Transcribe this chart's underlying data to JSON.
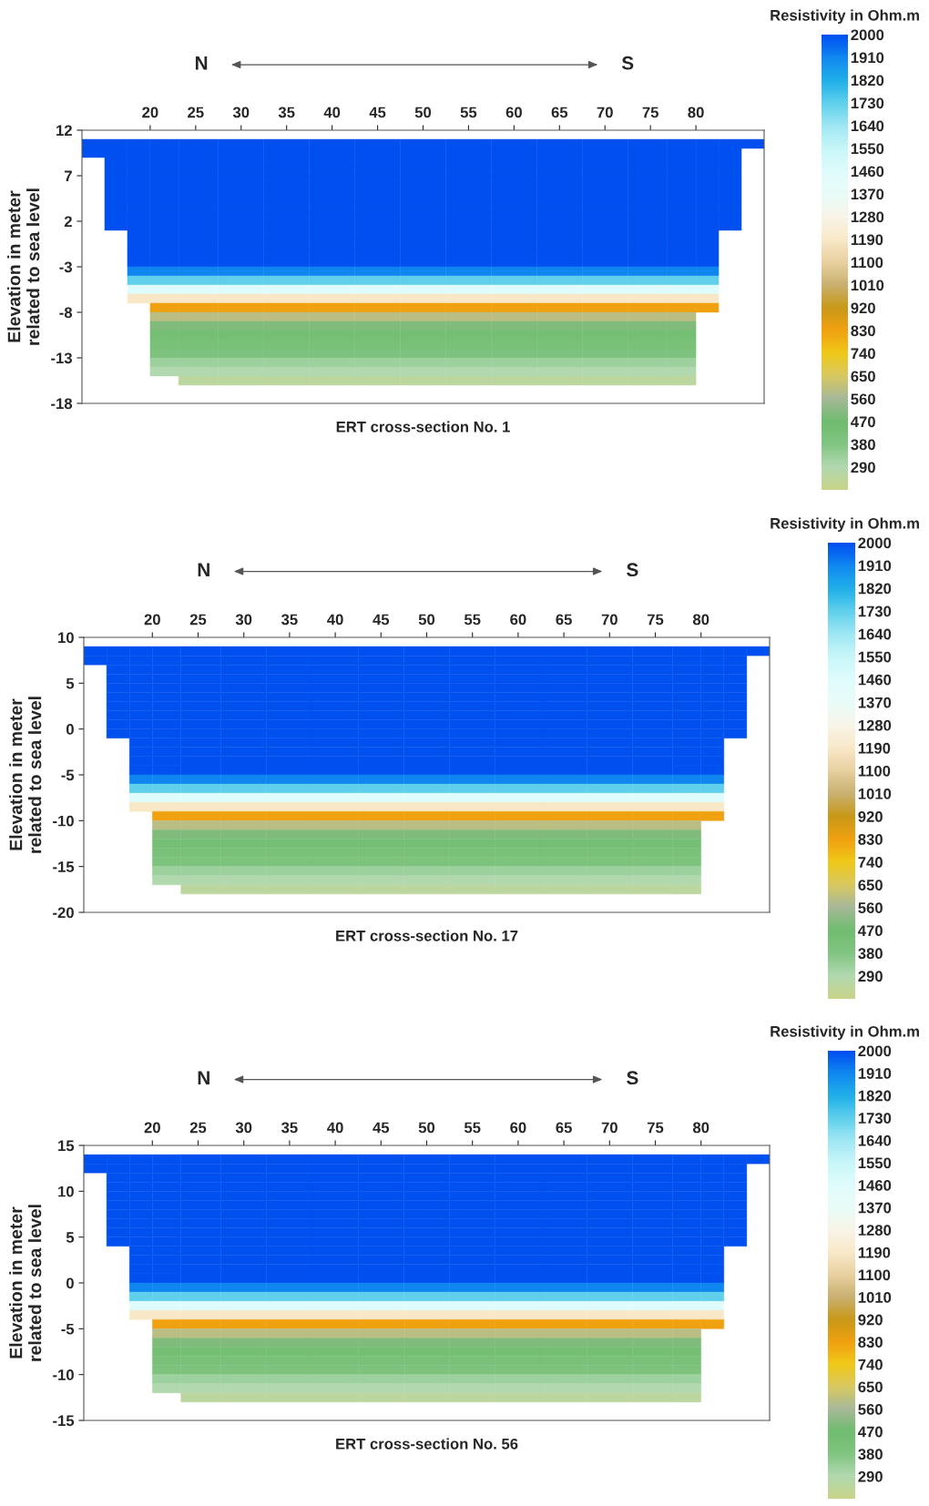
{
  "chart_data": [
    {
      "type": "heatmap",
      "xlabel": "ERT cross-section No. 1",
      "ylabel": "Elevation in meter\nrelated to sea level",
      "clabel": "Resistivity in Ohm.m",
      "annotations": [
        "N",
        "S"
      ],
      "x": [
        13.75,
        16.25,
        18.75,
        21.25,
        25,
        30,
        35,
        40,
        45,
        50,
        55,
        60,
        65,
        70,
        75,
        78.75,
        81.25,
        83.75,
        86.25
      ],
      "y": [
        10.5,
        9.5,
        8.5,
        7.5,
        6.5,
        5.5,
        4.5,
        3.5,
        2.5,
        1.5,
        0.5,
        -0.5,
        -1.5,
        -2.5,
        -3.5,
        -4.5,
        -5.5,
        -6.5,
        -7.5,
        -8.5,
        -9.5,
        -10.5,
        -11.5,
        -12.5,
        -13.5,
        -14.5,
        -15.5
      ],
      "cells": [
        [
          2000,
          2000,
          2000,
          2000,
          2000,
          2000,
          2000,
          2000,
          2000,
          2000,
          2000,
          2000,
          2000,
          2000,
          2000,
          2000,
          2000,
          2000,
          2000
        ],
        [
          2000,
          2000,
          2000,
          2000,
          2000,
          2000,
          2000,
          2000,
          2000,
          2000,
          2000,
          2000,
          2000,
          2000,
          2000,
          2000,
          2000,
          2000,
          null
        ],
        [
          null,
          2000,
          2000,
          2000,
          2000,
          2000,
          2000,
          2000,
          2000,
          2000,
          2000,
          2000,
          2000,
          2000,
          2000,
          2000,
          2000,
          2000,
          null
        ],
        [
          null,
          2000,
          2000,
          2000,
          2000,
          2000,
          2000,
          2000,
          2000,
          2000,
          2000,
          2000,
          2000,
          2000,
          2000,
          2000,
          2000,
          2000,
          null
        ],
        [
          null,
          2000,
          2000,
          2000,
          2000,
          2000,
          2000,
          2000,
          2000,
          2000,
          2000,
          2000,
          2000,
          2000,
          2000,
          2000,
          2000,
          2000,
          null
        ],
        [
          null,
          2000,
          2000,
          2000,
          2000,
          2000,
          2000,
          2000,
          2000,
          2000,
          2000,
          2000,
          2000,
          2000,
          2000,
          2000,
          2000,
          2000,
          null
        ],
        [
          null,
          2000,
          2000,
          2000,
          2000,
          2000,
          2000,
          2000,
          2000,
          2000,
          2000,
          2000,
          2000,
          2000,
          2000,
          2000,
          2000,
          2000,
          null
        ],
        [
          null,
          2000,
          2000,
          2000,
          2000,
          2000,
          2000,
          2000,
          2000,
          2000,
          2000,
          2000,
          2000,
          2000,
          2000,
          2000,
          2000,
          2000,
          null
        ],
        [
          null,
          2000,
          2000,
          2000,
          2000,
          2000,
          2000,
          2000,
          2000,
          2000,
          2000,
          2000,
          2000,
          2000,
          2000,
          2000,
          2000,
          2000,
          null
        ],
        [
          null,
          2000,
          2000,
          2000,
          2000,
          2000,
          2000,
          2000,
          2000,
          2000,
          2000,
          2000,
          2000,
          2000,
          2000,
          2000,
          2000,
          2000,
          null
        ],
        [
          null,
          null,
          2000,
          2000,
          2000,
          2000,
          2000,
          2000,
          2000,
          2000,
          2000,
          2000,
          2000,
          2000,
          2000,
          2000,
          2000,
          null,
          null
        ],
        [
          null,
          null,
          2000,
          2000,
          2000,
          2000,
          2000,
          2000,
          2000,
          2000,
          2000,
          2000,
          2000,
          2000,
          2000,
          2000,
          2000,
          null,
          null
        ],
        [
          null,
          null,
          2000,
          2000,
          2000,
          2000,
          2000,
          2000,
          2000,
          2000,
          2000,
          2000,
          2000,
          2000,
          2000,
          2000,
          2000,
          null,
          null
        ],
        [
          null,
          null,
          2000,
          2000,
          2000,
          2000,
          2000,
          2000,
          2000,
          2000,
          2000,
          2000,
          2000,
          2000,
          2000,
          2000,
          2000,
          null,
          null
        ],
        [
          null,
          null,
          1910,
          1910,
          1910,
          1910,
          1910,
          1910,
          1910,
          1910,
          1910,
          1910,
          1910,
          1910,
          1910,
          1910,
          1910,
          null,
          null
        ],
        [
          null,
          null,
          1730,
          1730,
          1730,
          1730,
          1730,
          1730,
          1730,
          1730,
          1730,
          1730,
          1730,
          1730,
          1730,
          1730,
          1730,
          null,
          null
        ],
        [
          null,
          null,
          1460,
          1460,
          1460,
          1460,
          1460,
          1460,
          1460,
          1460,
          1460,
          1460,
          1460,
          1460,
          1460,
          1460,
          1460,
          null,
          null
        ],
        [
          null,
          null,
          1190,
          1190,
          1190,
          1190,
          1190,
          1190,
          1190,
          1190,
          1190,
          1190,
          1190,
          1190,
          1190,
          1190,
          1190,
          null,
          null
        ],
        [
          null,
          null,
          null,
          830,
          830,
          830,
          830,
          830,
          830,
          830,
          830,
          830,
          830,
          830,
          830,
          830,
          830,
          null,
          null
        ],
        [
          null,
          null,
          null,
          600,
          600,
          600,
          600,
          600,
          600,
          600,
          600,
          600,
          600,
          600,
          600,
          600,
          null,
          null,
          null
        ],
        [
          null,
          null,
          null,
          500,
          500,
          500,
          500,
          500,
          500,
          500,
          500,
          500,
          500,
          500,
          500,
          500,
          null,
          null,
          null
        ],
        [
          null,
          null,
          null,
          440,
          440,
          440,
          440,
          440,
          440,
          440,
          440,
          440,
          440,
          440,
          440,
          440,
          null,
          null,
          null
        ],
        [
          null,
          null,
          null,
          420,
          420,
          420,
          420,
          420,
          420,
          420,
          420,
          420,
          420,
          420,
          420,
          420,
          null,
          null,
          null
        ],
        [
          null,
          null,
          null,
          400,
          400,
          400,
          400,
          400,
          400,
          400,
          400,
          400,
          400,
          400,
          400,
          400,
          null,
          null,
          null
        ],
        [
          null,
          null,
          null,
          330,
          330,
          330,
          330,
          330,
          330,
          330,
          330,
          330,
          330,
          330,
          330,
          330,
          null,
          null,
          null
        ],
        [
          null,
          null,
          null,
          290,
          290,
          290,
          290,
          290,
          290,
          290,
          290,
          290,
          290,
          290,
          290,
          290,
          null,
          null,
          null
        ],
        [
          null,
          null,
          null,
          null,
          250,
          250,
          250,
          250,
          250,
          250,
          250,
          250,
          250,
          250,
          250,
          250,
          null,
          null,
          null
        ]
      ],
      "colors": [
        "#c8d48a",
        "#b0d8b0",
        "#80c480",
        "#70bc70",
        "#a8b898",
        "#d8c860",
        "#f0c818",
        "#f0a010",
        "#c89818",
        "#c8b070",
        "#e8d0a0",
        "#f8e8c8",
        "#f8f4e8",
        "#e8fcf8",
        "#e0fcfc",
        "#c8f6f8",
        "#a0e8f4",
        "#60d0ec",
        "#20b0e8",
        "#1088f0",
        "#0050f0"
      ],
      "clim": [
        200,
        2000
      ],
      "cticks": [
        290,
        380,
        470,
        560,
        650,
        740,
        830,
        920,
        1010,
        1100,
        1190,
        1280,
        1370,
        1460,
        1550,
        1640,
        1730,
        1820,
        1910,
        2000
      ],
      "xlim": [
        12.5,
        87.5
      ],
      "xticks": [
        20,
        25,
        30,
        35,
        40,
        45,
        50,
        55,
        60,
        65,
        70,
        75,
        80
      ],
      "ylim": [
        -18,
        12
      ],
      "yticks": [
        12,
        7,
        2,
        -3,
        -8,
        -13,
        -18
      ],
      "grid": false
    },
    {
      "type": "heatmap",
      "xlabel": "ERT cross-section No. 17",
      "ylabel": "Elevation in meter\nrelated to sea level",
      "clabel": "Resistivity in Ohm.m",
      "annotations": [
        "N",
        "S"
      ],
      "x": [
        13.75,
        16.25,
        18.75,
        21.25,
        25,
        30,
        35,
        40,
        45,
        50,
        55,
        60,
        65,
        70,
        75,
        78.75,
        81.25,
        83.75,
        86.25
      ],
      "y": [
        8.5,
        7.5,
        6.5,
        5.5,
        4.5,
        3.5,
        2.5,
        1.5,
        0.5,
        -0.5,
        -1.5,
        -2.5,
        -3.5,
        -4.5,
        -5.5,
        -6.5,
        -7.5,
        -8.5,
        -9.5,
        -10.5,
        -11.5,
        -12.5,
        -13.5,
        -14.5,
        -15.5,
        -16.5,
        -17.5
      ],
      "cells": [
        [
          2000,
          2000,
          2000,
          2000,
          2000,
          2000,
          2000,
          2000,
          2000,
          2000,
          2000,
          2000,
          2000,
          2000,
          2000,
          2000,
          2000,
          2000,
          2000
        ],
        [
          2000,
          2000,
          2000,
          2000,
          2000,
          2000,
          2000,
          2000,
          2000,
          2000,
          2000,
          2000,
          2000,
          2000,
          2000,
          2000,
          2000,
          2000,
          null
        ],
        [
          null,
          2000,
          2000,
          2000,
          2000,
          2000,
          2000,
          2000,
          2000,
          2000,
          2000,
          2000,
          2000,
          2000,
          2000,
          2000,
          2000,
          2000,
          null
        ],
        [
          null,
          2000,
          2000,
          2000,
          2000,
          2000,
          2000,
          2000,
          2000,
          2000,
          2000,
          2000,
          2000,
          2000,
          2000,
          2000,
          2000,
          2000,
          null
        ],
        [
          null,
          2000,
          2000,
          2000,
          2000,
          2000,
          2000,
          2000,
          2000,
          2000,
          2000,
          2000,
          2000,
          2000,
          2000,
          2000,
          2000,
          2000,
          null
        ],
        [
          null,
          2000,
          2000,
          2000,
          2000,
          2000,
          2000,
          2000,
          2000,
          2000,
          2000,
          2000,
          2000,
          2000,
          2000,
          2000,
          2000,
          2000,
          null
        ],
        [
          null,
          2000,
          2000,
          2000,
          2000,
          2000,
          2000,
          2000,
          2000,
          2000,
          2000,
          2000,
          2000,
          2000,
          2000,
          2000,
          2000,
          2000,
          null
        ],
        [
          null,
          2000,
          2000,
          2000,
          2000,
          2000,
          2000,
          2000,
          2000,
          2000,
          2000,
          2000,
          2000,
          2000,
          2000,
          2000,
          2000,
          2000,
          null
        ],
        [
          null,
          2000,
          2000,
          2000,
          2000,
          2000,
          2000,
          2000,
          2000,
          2000,
          2000,
          2000,
          2000,
          2000,
          2000,
          2000,
          2000,
          2000,
          null
        ],
        [
          null,
          2000,
          2000,
          2000,
          2000,
          2000,
          2000,
          2000,
          2000,
          2000,
          2000,
          2000,
          2000,
          2000,
          2000,
          2000,
          2000,
          2000,
          null
        ],
        [
          null,
          null,
          2000,
          2000,
          2000,
          2000,
          2000,
          2000,
          2000,
          2000,
          2000,
          2000,
          2000,
          2000,
          2000,
          2000,
          2000,
          null,
          null
        ],
        [
          null,
          null,
          2000,
          2000,
          2000,
          2000,
          2000,
          2000,
          2000,
          2000,
          2000,
          2000,
          2000,
          2000,
          2000,
          2000,
          2000,
          null,
          null
        ],
        [
          null,
          null,
          2000,
          2000,
          2000,
          2000,
          2000,
          2000,
          2000,
          2000,
          2000,
          2000,
          2000,
          2000,
          2000,
          2000,
          2000,
          null,
          null
        ],
        [
          null,
          null,
          2000,
          2000,
          2000,
          2000,
          2000,
          2000,
          2000,
          2000,
          2000,
          2000,
          2000,
          2000,
          2000,
          2000,
          2000,
          null,
          null
        ],
        [
          null,
          null,
          1910,
          1910,
          1910,
          1910,
          1910,
          1910,
          1910,
          1910,
          1910,
          1910,
          1910,
          1910,
          1910,
          1910,
          1910,
          null,
          null
        ],
        [
          null,
          null,
          1730,
          1730,
          1730,
          1730,
          1730,
          1730,
          1730,
          1730,
          1730,
          1730,
          1730,
          1730,
          1730,
          1730,
          1730,
          null,
          null
        ],
        [
          null,
          null,
          1460,
          1460,
          1460,
          1460,
          1460,
          1460,
          1460,
          1460,
          1460,
          1460,
          1460,
          1460,
          1460,
          1460,
          1460,
          null,
          null
        ],
        [
          null,
          null,
          1190,
          1190,
          1190,
          1190,
          1190,
          1190,
          1190,
          1190,
          1190,
          1190,
          1190,
          1190,
          1190,
          1190,
          1190,
          null,
          null
        ],
        [
          null,
          null,
          null,
          830,
          830,
          830,
          830,
          830,
          830,
          830,
          830,
          830,
          830,
          830,
          830,
          830,
          830,
          null,
          null
        ],
        [
          null,
          null,
          null,
          600,
          600,
          600,
          600,
          600,
          600,
          600,
          600,
          600,
          600,
          600,
          600,
          600,
          null,
          null,
          null
        ],
        [
          null,
          null,
          null,
          500,
          500,
          500,
          500,
          500,
          500,
          500,
          500,
          500,
          500,
          500,
          500,
          500,
          null,
          null,
          null
        ],
        [
          null,
          null,
          null,
          440,
          440,
          440,
          440,
          440,
          440,
          440,
          440,
          440,
          440,
          440,
          440,
          440,
          null,
          null,
          null
        ],
        [
          null,
          null,
          null,
          420,
          420,
          420,
          420,
          420,
          420,
          420,
          420,
          420,
          420,
          420,
          420,
          420,
          null,
          null,
          null
        ],
        [
          null,
          null,
          null,
          400,
          400,
          400,
          400,
          400,
          400,
          400,
          400,
          400,
          400,
          400,
          400,
          400,
          null,
          null,
          null
        ],
        [
          null,
          null,
          null,
          330,
          330,
          330,
          330,
          330,
          330,
          330,
          330,
          330,
          330,
          330,
          330,
          330,
          null,
          null,
          null
        ],
        [
          null,
          null,
          null,
          290,
          290,
          290,
          290,
          290,
          290,
          290,
          290,
          290,
          290,
          290,
          290,
          290,
          null,
          null,
          null
        ],
        [
          null,
          null,
          null,
          null,
          250,
          250,
          250,
          250,
          250,
          250,
          250,
          250,
          250,
          250,
          250,
          250,
          null,
          null,
          null
        ]
      ],
      "colors": [
        "#c8d48a",
        "#b0d8b0",
        "#80c480",
        "#70bc70",
        "#a8b898",
        "#d8c860",
        "#f0c818",
        "#f0a010",
        "#c89818",
        "#c8b070",
        "#e8d0a0",
        "#f8e8c8",
        "#f8f4e8",
        "#e8fcf8",
        "#e0fcfc",
        "#c8f6f8",
        "#a0e8f4",
        "#60d0ec",
        "#20b0e8",
        "#1088f0",
        "#0050f0"
      ],
      "clim": [
        200,
        2000
      ],
      "cticks": [
        290,
        380,
        470,
        560,
        650,
        740,
        830,
        920,
        1010,
        1100,
        1190,
        1280,
        1370,
        1460,
        1550,
        1640,
        1730,
        1820,
        1910,
        2000
      ],
      "xlim": [
        12.5,
        87.5
      ],
      "xticks": [
        20,
        25,
        30,
        35,
        40,
        45,
        50,
        55,
        60,
        65,
        70,
        75,
        80
      ],
      "ylim": [
        -20,
        10
      ],
      "yticks": [
        10,
        5,
        0,
        -5,
        -10,
        -15,
        -20
      ],
      "grid": false
    },
    {
      "type": "heatmap",
      "xlabel": "ERT cross-section No. 56",
      "ylabel": "Elevation in meter\nrelated to sea level",
      "clabel": "Resistivity in Ohm.m",
      "annotations": [
        "N",
        "S"
      ],
      "x": [
        13.75,
        16.25,
        18.75,
        21.25,
        25,
        30,
        35,
        40,
        45,
        50,
        55,
        60,
        65,
        70,
        75,
        78.75,
        81.25,
        83.75,
        86.25
      ],
      "y": [
        13.5,
        12.5,
        11.5,
        10.5,
        9.5,
        8.5,
        7.5,
        6.5,
        5.5,
        4.5,
        3.5,
        2.5,
        1.5,
        0.5,
        -0.5,
        -1.5,
        -2.5,
        -3.5,
        -4.5,
        -5.5,
        -6.5,
        -7.5,
        -8.5,
        -9.5,
        -10.5,
        -11.5,
        -12.5
      ],
      "cells": [
        [
          2000,
          2000,
          2000,
          2000,
          2000,
          2000,
          2000,
          2000,
          2000,
          2000,
          2000,
          2000,
          2000,
          2000,
          2000,
          2000,
          2000,
          2000,
          2000
        ],
        [
          2000,
          2000,
          2000,
          2000,
          2000,
          2000,
          2000,
          2000,
          2000,
          2000,
          2000,
          2000,
          2000,
          2000,
          2000,
          2000,
          2000,
          2000,
          null
        ],
        [
          null,
          2000,
          2000,
          2000,
          2000,
          2000,
          2000,
          2000,
          2000,
          2000,
          2000,
          2000,
          2000,
          2000,
          2000,
          2000,
          2000,
          2000,
          null
        ],
        [
          null,
          2000,
          2000,
          2000,
          2000,
          2000,
          2000,
          2000,
          2000,
          2000,
          2000,
          2000,
          2000,
          2000,
          2000,
          2000,
          2000,
          2000,
          null
        ],
        [
          null,
          2000,
          2000,
          2000,
          2000,
          2000,
          2000,
          2000,
          2000,
          2000,
          2000,
          2000,
          2000,
          2000,
          2000,
          2000,
          2000,
          2000,
          null
        ],
        [
          null,
          2000,
          2000,
          2000,
          2000,
          2000,
          2000,
          2000,
          2000,
          2000,
          2000,
          2000,
          2000,
          2000,
          2000,
          2000,
          2000,
          2000,
          null
        ],
        [
          null,
          2000,
          2000,
          2000,
          2000,
          2000,
          2000,
          2000,
          2000,
          2000,
          2000,
          2000,
          2000,
          2000,
          2000,
          2000,
          2000,
          2000,
          null
        ],
        [
          null,
          2000,
          2000,
          2000,
          2000,
          2000,
          2000,
          2000,
          2000,
          2000,
          2000,
          2000,
          2000,
          2000,
          2000,
          2000,
          2000,
          2000,
          null
        ],
        [
          null,
          2000,
          2000,
          2000,
          2000,
          2000,
          2000,
          2000,
          2000,
          2000,
          2000,
          2000,
          2000,
          2000,
          2000,
          2000,
          2000,
          2000,
          null
        ],
        [
          null,
          2000,
          2000,
          2000,
          2000,
          2000,
          2000,
          2000,
          2000,
          2000,
          2000,
          2000,
          2000,
          2000,
          2000,
          2000,
          2000,
          2000,
          null
        ],
        [
          null,
          null,
          2000,
          2000,
          2000,
          2000,
          2000,
          2000,
          2000,
          2000,
          2000,
          2000,
          2000,
          2000,
          2000,
          2000,
          2000,
          null,
          null
        ],
        [
          null,
          null,
          2000,
          2000,
          2000,
          2000,
          2000,
          2000,
          2000,
          2000,
          2000,
          2000,
          2000,
          2000,
          2000,
          2000,
          2000,
          null,
          null
        ],
        [
          null,
          null,
          2000,
          2000,
          2000,
          2000,
          2000,
          2000,
          2000,
          2000,
          2000,
          2000,
          2000,
          2000,
          2000,
          2000,
          2000,
          null,
          null
        ],
        [
          null,
          null,
          2000,
          2000,
          2000,
          2000,
          2000,
          2000,
          2000,
          2000,
          2000,
          2000,
          2000,
          2000,
          2000,
          2000,
          2000,
          null,
          null
        ],
        [
          null,
          null,
          1910,
          1910,
          1910,
          1910,
          1910,
          1910,
          1910,
          1910,
          1910,
          1910,
          1910,
          1910,
          1910,
          1910,
          1910,
          null,
          null
        ],
        [
          null,
          null,
          1730,
          1730,
          1730,
          1730,
          1730,
          1730,
          1730,
          1730,
          1730,
          1730,
          1730,
          1730,
          1730,
          1730,
          1730,
          null,
          null
        ],
        [
          null,
          null,
          1460,
          1460,
          1460,
          1460,
          1460,
          1460,
          1460,
          1460,
          1460,
          1460,
          1460,
          1460,
          1460,
          1460,
          1460,
          null,
          null
        ],
        [
          null,
          null,
          1190,
          1190,
          1190,
          1190,
          1190,
          1190,
          1190,
          1190,
          1190,
          1190,
          1190,
          1190,
          1190,
          1190,
          1190,
          null,
          null
        ],
        [
          null,
          null,
          null,
          830,
          830,
          830,
          830,
          830,
          830,
          830,
          830,
          830,
          830,
          830,
          830,
          830,
          830,
          null,
          null
        ],
        [
          null,
          null,
          null,
          600,
          600,
          600,
          600,
          600,
          600,
          600,
          600,
          600,
          600,
          600,
          600,
          600,
          null,
          null,
          null
        ],
        [
          null,
          null,
          null,
          500,
          500,
          500,
          500,
          500,
          500,
          500,
          500,
          500,
          500,
          500,
          500,
          500,
          null,
          null,
          null
        ],
        [
          null,
          null,
          null,
          440,
          440,
          440,
          440,
          440,
          440,
          440,
          440,
          440,
          440,
          440,
          440,
          440,
          null,
          null,
          null
        ],
        [
          null,
          null,
          null,
          420,
          420,
          420,
          420,
          420,
          420,
          420,
          420,
          420,
          420,
          420,
          420,
          420,
          null,
          null,
          null
        ],
        [
          null,
          null,
          null,
          400,
          400,
          400,
          400,
          400,
          400,
          400,
          400,
          400,
          400,
          400,
          400,
          400,
          null,
          null,
          null
        ],
        [
          null,
          null,
          null,
          330,
          330,
          330,
          330,
          330,
          330,
          330,
          330,
          330,
          330,
          330,
          330,
          330,
          null,
          null,
          null
        ],
        [
          null,
          null,
          null,
          290,
          290,
          290,
          290,
          290,
          290,
          290,
          290,
          290,
          290,
          290,
          290,
          290,
          null,
          null,
          null
        ],
        [
          null,
          null,
          null,
          null,
          250,
          250,
          250,
          250,
          250,
          250,
          250,
          250,
          250,
          250,
          250,
          250,
          null,
          null,
          null
        ]
      ],
      "colors": [
        "#c8d48a",
        "#b0d8b0",
        "#80c480",
        "#70bc70",
        "#a8b898",
        "#d8c860",
        "#f0c818",
        "#f0a010",
        "#c89818",
        "#c8b070",
        "#e8d0a0",
        "#f8e8c8",
        "#f8f4e8",
        "#e8fcf8",
        "#e0fcfc",
        "#c8f6f8",
        "#a0e8f4",
        "#60d0ec",
        "#20b0e8",
        "#1088f0",
        "#0050f0"
      ],
      "clim": [
        200,
        2000
      ],
      "cticks": [
        290,
        380,
        470,
        560,
        650,
        740,
        830,
        920,
        1010,
        1100,
        1190,
        1280,
        1370,
        1460,
        1550,
        1640,
        1730,
        1820,
        1910,
        2000
      ],
      "xlim": [
        12.5,
        87.5
      ],
      "xticks": [
        20,
        25,
        30,
        35,
        40,
        45,
        50,
        55,
        60,
        65,
        70,
        75,
        80
      ],
      "ylim": [
        -15,
        15
      ],
      "yticks": [
        15,
        10,
        5,
        0,
        -5,
        -10,
        -15
      ],
      "grid": false
    }
  ]
}
